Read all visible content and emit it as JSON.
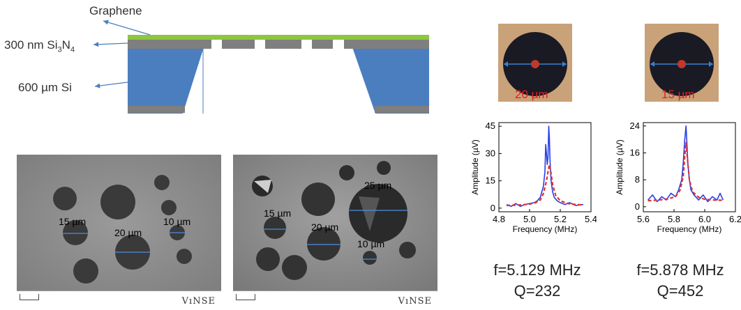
{
  "schematic": {
    "labels": {
      "graphene": "Graphene",
      "nitride_prefix": "300 nm Si",
      "nitride_sub1": "3",
      "nitride_mid": "N",
      "nitride_sub2": "4",
      "silicon": "600 µm Si"
    },
    "colors": {
      "graphene": "#8dc63f",
      "nitride": "#7f7f7f",
      "silicon": "#4a7ebf",
      "arrow": "#4a7ebf"
    }
  },
  "sem_left": {
    "labels": [
      "15 µm",
      "20 µm",
      "10 µm"
    ],
    "vinse": "VıNSE"
  },
  "sem_right": {
    "labels": [
      "25 µm",
      "15 µm",
      "20 µm",
      "10 µm"
    ],
    "vinse": "VıNSE"
  },
  "device_left": {
    "photo_label": "20 µm",
    "f": "f=5.129 MHz",
    "q": "Q=232",
    "chart_data": {
      "type": "line",
      "xlabel": "Frequency (MHz)",
      "ylabel": "Amplitude (µV)",
      "xlim": [
        4.8,
        5.4
      ],
      "ylim": [
        -2,
        47
      ],
      "xticks": [
        4.8,
        5.0,
        5.2,
        5.4
      ],
      "xtick_labels": [
        "4.8",
        "5.0",
        "5.2",
        "5.4"
      ],
      "yticks": [
        0,
        15,
        30,
        45
      ],
      "ytick_labels": [
        "0",
        "15",
        "30",
        "45"
      ],
      "series": [
        {
          "color": "#2a3fe6",
          "x": [
            4.85,
            4.88,
            4.91,
            4.94,
            4.97,
            5.0,
            5.03,
            5.05,
            5.07,
            5.09,
            5.1,
            5.105,
            5.11,
            5.115,
            5.12,
            5.125,
            5.129,
            5.133,
            5.14,
            5.15,
            5.16,
            5.18,
            5.2,
            5.23,
            5.26,
            5.3,
            5.35
          ],
          "y": [
            2,
            1,
            2.5,
            1,
            2,
            2.5,
            3,
            4,
            6,
            12,
            20,
            35,
            30,
            24,
            28,
            45,
            38,
            26,
            15,
            9,
            6,
            4,
            3,
            2,
            3,
            1.5,
            2
          ]
        },
        {
          "color": "#e03030",
          "dashed": true,
          "x": [
            4.85,
            4.9,
            4.95,
            5.0,
            5.04,
            5.07,
            5.09,
            5.11,
            5.12,
            5.129,
            5.14,
            5.15,
            5.17,
            5.2,
            5.25,
            5.3,
            5.35
          ],
          "y": [
            1.5,
            1.6,
            1.8,
            2.2,
            3,
            4.5,
            8,
            15,
            20,
            24,
            19,
            13,
            7,
            4,
            2.5,
            2,
            1.8
          ]
        }
      ]
    }
  },
  "device_right": {
    "photo_label": "15 µm",
    "f": "f=5.878 MHz",
    "q": "Q=452",
    "chart_data": {
      "type": "line",
      "xlabel": "Frequency (MHz)",
      "ylabel": "Amplitude (µV)",
      "xlim": [
        5.6,
        6.2
      ],
      "ylim": [
        -1.5,
        25
      ],
      "xticks": [
        5.6,
        5.8,
        6.0,
        6.2
      ],
      "xtick_labels": [
        "5.6",
        "5.8",
        "6.0",
        "6.2"
      ],
      "yticks": [
        0,
        8,
        16,
        24
      ],
      "ytick_labels": [
        "0",
        "8",
        "16",
        "24"
      ],
      "series": [
        {
          "color": "#2a3fe6",
          "x": [
            5.63,
            5.66,
            5.69,
            5.72,
            5.75,
            5.78,
            5.81,
            5.83,
            5.85,
            5.86,
            5.87,
            5.878,
            5.885,
            5.89,
            5.9,
            5.91,
            5.93,
            5.96,
            5.99,
            6.02,
            6.05,
            6.08,
            6.1,
            6.12
          ],
          "y": [
            2,
            3.5,
            1.5,
            3,
            2,
            4,
            3,
            5,
            8,
            13,
            20,
            24,
            18,
            13,
            8,
            5,
            3.5,
            2,
            3.5,
            1.5,
            3,
            2,
            4,
            2
          ]
        },
        {
          "color": "#e03030",
          "dashed": true,
          "x": [
            5.63,
            5.7,
            5.76,
            5.81,
            5.84,
            5.86,
            5.87,
            5.878,
            5.886,
            5.9,
            5.92,
            5.96,
            6.0,
            6.06,
            6.12
          ],
          "y": [
            1.8,
            2,
            2.3,
            3,
            5,
            9,
            15,
            19,
            15,
            8,
            4.5,
            2.8,
            2.2,
            2,
            1.9
          ]
        }
      ]
    }
  }
}
